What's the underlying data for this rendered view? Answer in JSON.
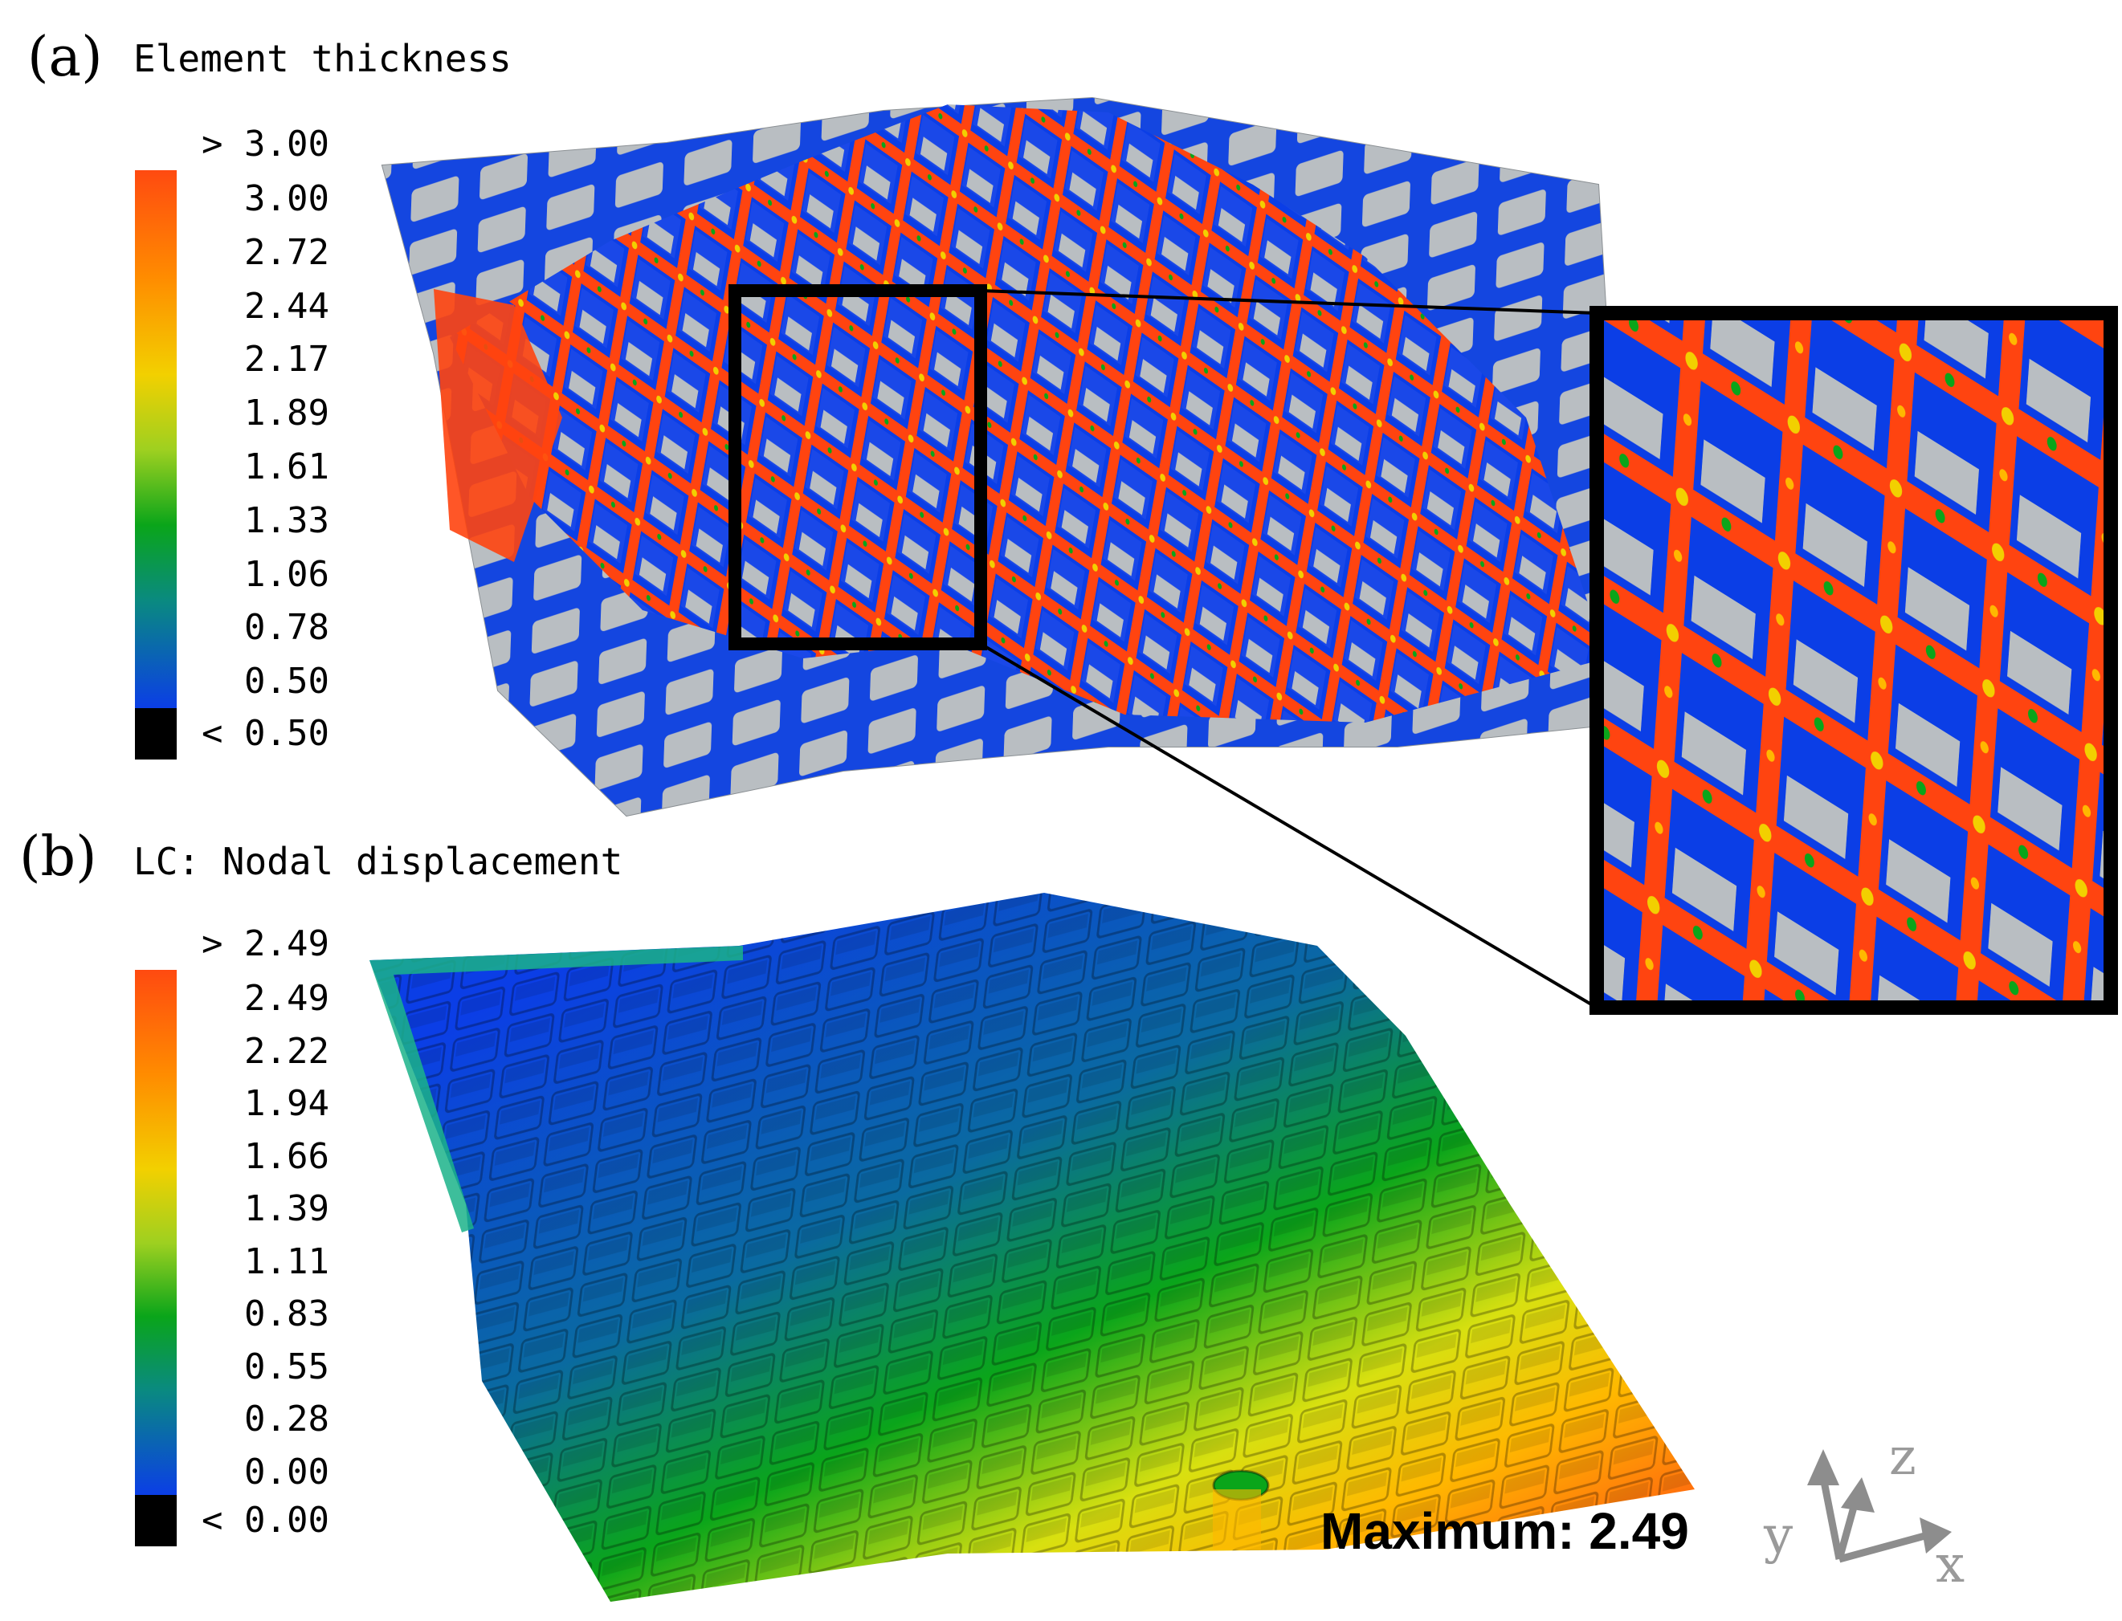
{
  "panel_a": {
    "label": "(a)",
    "title": "Element thickness",
    "over_label": "> 3.00",
    "ticks": [
      "3.00",
      "2.72",
      "2.44",
      "2.17",
      "1.89",
      "1.61",
      "1.33",
      "1.06",
      "0.78",
      "0.50"
    ],
    "under_label": "< 0.50"
  },
  "panel_b": {
    "label": "(b)",
    "title": "LC: Nodal displacement",
    "over_label": "> 2.49",
    "ticks": [
      "2.49",
      "2.22",
      "1.94",
      "1.66",
      "1.39",
      "1.11",
      "0.83",
      "0.55",
      "0.28",
      "0.00"
    ],
    "under_label": "< 0.00",
    "maximum_label": "Maximum: 2.49"
  },
  "axes_triad": {
    "x": "x",
    "y": "y",
    "z": "z"
  },
  "colors": {
    "scale": [
      "#0b3ee6",
      "#0aa51a",
      "#d8e010",
      "#ffb800",
      "#ff5a10"
    ],
    "void": "#b9bec2",
    "under": "#000000"
  }
}
